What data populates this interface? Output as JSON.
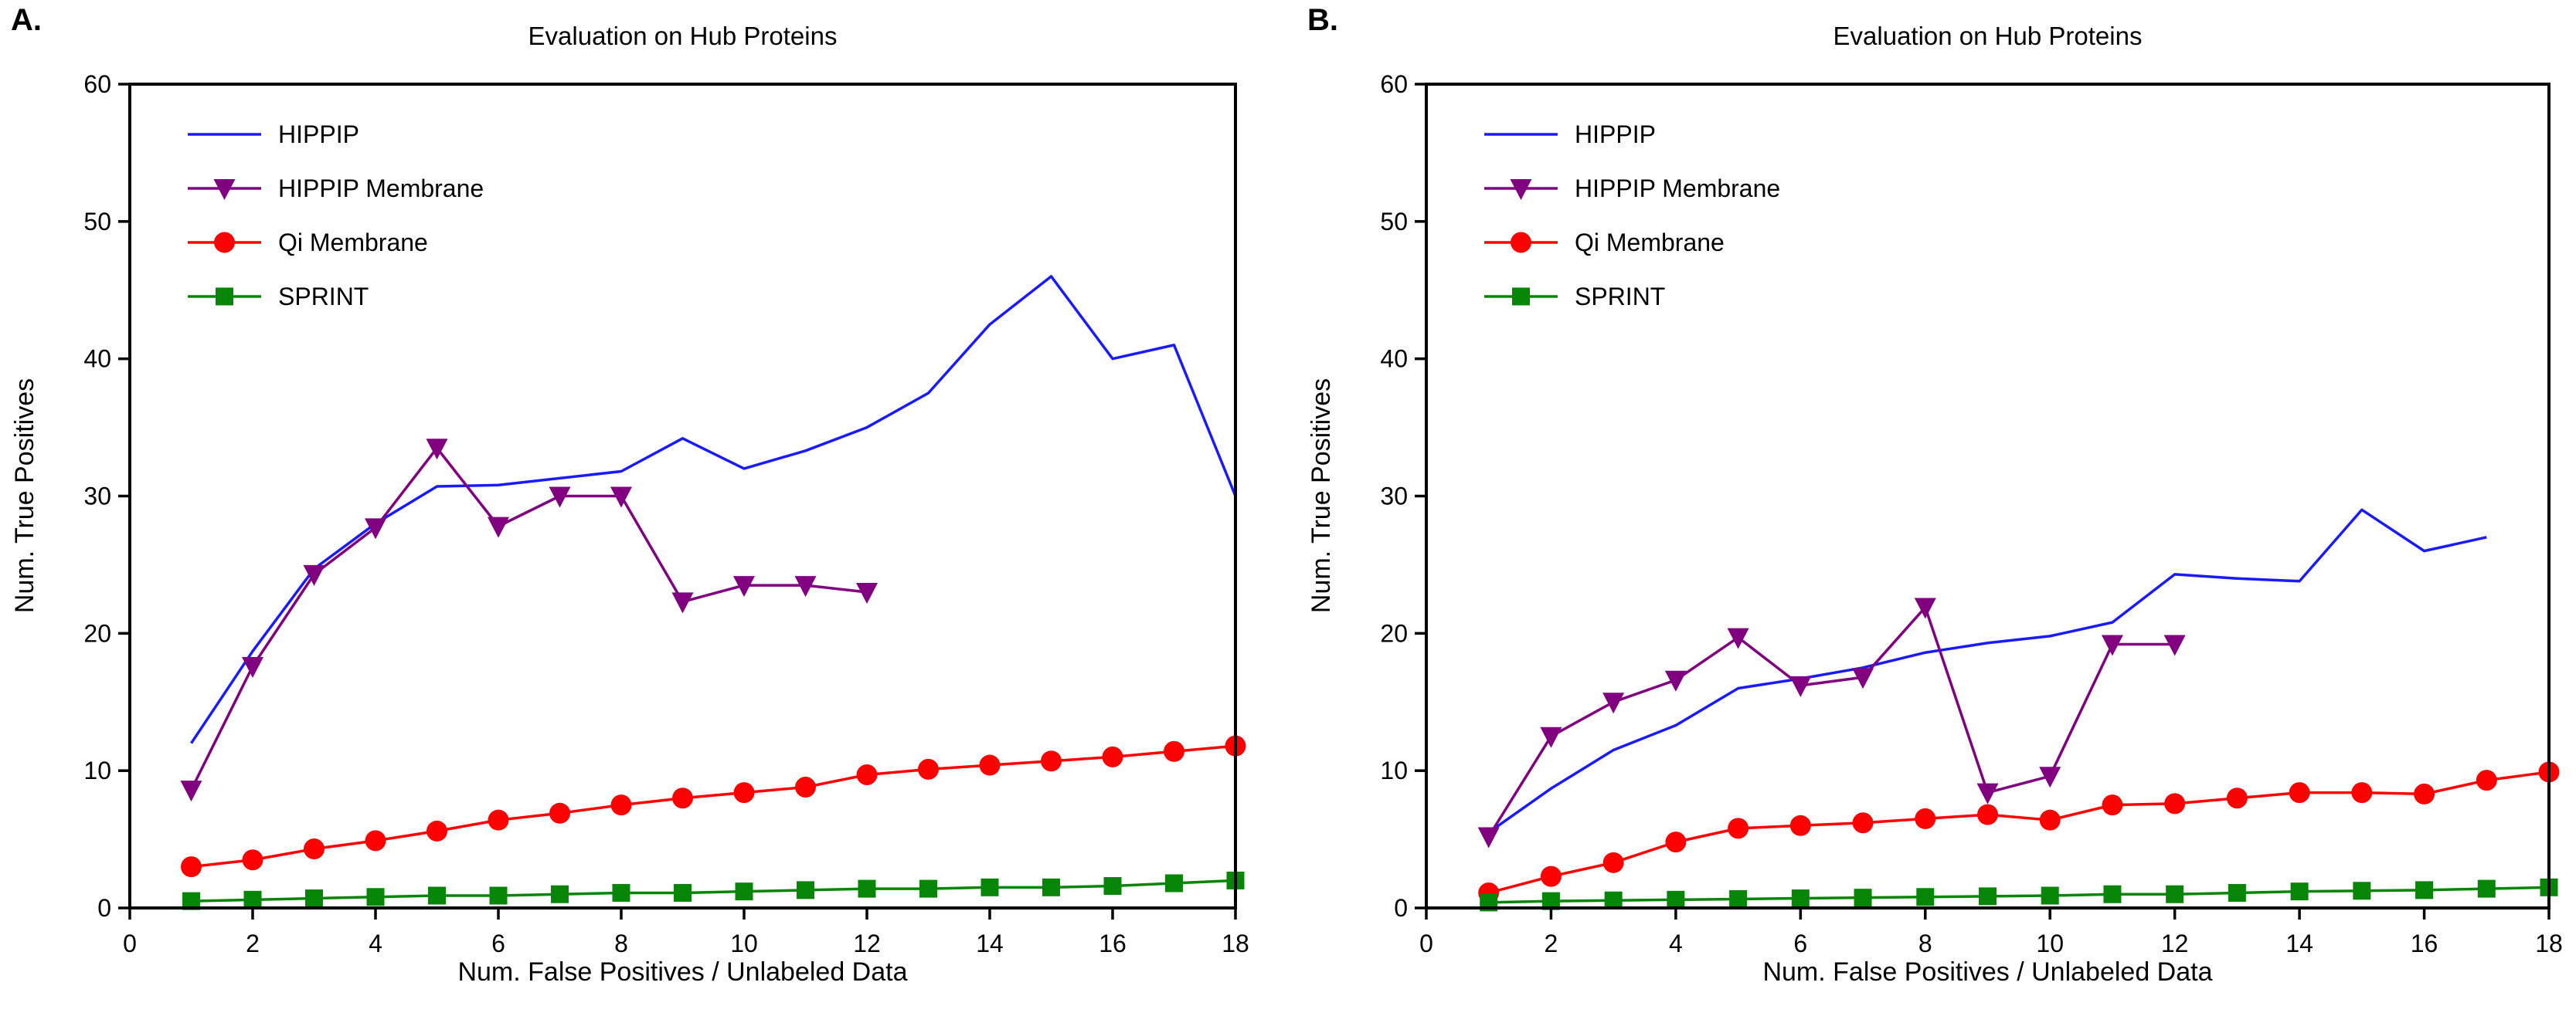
{
  "figure": {
    "background": "#ffffff",
    "text_color": "#000000"
  },
  "chart_data": [
    {
      "type": "line",
      "panel_label": "A.",
      "title": "Evaluation on Hub Proteins",
      "xlabel": "Num. False Positives / Unlabeled Data",
      "ylabel": "Num. True Positives",
      "xlim": [
        0,
        18
      ],
      "ylim": [
        0,
        60
      ],
      "xticks": [
        0,
        2,
        4,
        6,
        8,
        10,
        12,
        14,
        16,
        18
      ],
      "yticks": [
        0,
        10,
        20,
        30,
        40,
        50,
        60
      ],
      "grid": false,
      "legend_position": "upper left",
      "axis_color": "#000000",
      "series": [
        {
          "name": "HIPPIP",
          "color": "#1a1aff",
          "marker": "none",
          "x": [
            1,
            2,
            3,
            4,
            5,
            6,
            7,
            8,
            9,
            10,
            11,
            12,
            13,
            14,
            15,
            16,
            17,
            18
          ],
          "y": [
            12,
            18.7,
            24.7,
            28,
            30.7,
            30.8,
            31.3,
            31.8,
            34.2,
            32,
            33.3,
            35,
            37.5,
            42.5,
            46,
            40,
            41,
            30
          ]
        },
        {
          "name": "HIPPIP Membrane",
          "color": "#800080",
          "marker": "triangle-down",
          "x": [
            1,
            2,
            3,
            4,
            5,
            6,
            7,
            8,
            9,
            10,
            11,
            12
          ],
          "y": [
            8.6,
            17.6,
            24.3,
            27.7,
            33.5,
            27.8,
            30,
            30,
            22.3,
            23.5,
            23.5,
            23
          ]
        },
        {
          "name": "Qi Membrane",
          "color": "#ff0000",
          "marker": "circle",
          "x": [
            1,
            2,
            3,
            4,
            5,
            6,
            7,
            8,
            9,
            10,
            11,
            12,
            13,
            14,
            15,
            16,
            17,
            18
          ],
          "y": [
            3,
            3.5,
            4.3,
            4.9,
            5.6,
            6.4,
            6.9,
            7.5,
            8,
            8.4,
            8.8,
            9.7,
            10.1,
            10.4,
            10.7,
            11,
            11.4,
            11.8
          ]
        },
        {
          "name": "SPRINT",
          "color": "#078507",
          "marker": "square",
          "x": [
            1,
            2,
            3,
            4,
            5,
            6,
            7,
            8,
            9,
            10,
            11,
            12,
            13,
            14,
            15,
            16,
            17,
            18
          ],
          "y": [
            0.5,
            0.6,
            0.7,
            0.8,
            0.9,
            0.9,
            1,
            1.1,
            1.1,
            1.2,
            1.3,
            1.4,
            1.4,
            1.5,
            1.5,
            1.6,
            1.8,
            2
          ]
        }
      ]
    },
    {
      "type": "line",
      "panel_label": "B.",
      "title": "Evaluation on Hub Proteins",
      "xlabel": "Num. False Positives / Unlabeled Data",
      "ylabel": "Num. True Positives",
      "xlim": [
        0,
        18
      ],
      "ylim": [
        0,
        60
      ],
      "xticks": [
        0,
        2,
        4,
        6,
        8,
        10,
        12,
        14,
        16,
        18
      ],
      "yticks": [
        0,
        10,
        20,
        30,
        40,
        50,
        60
      ],
      "grid": false,
      "legend_position": "upper left",
      "axis_color": "#000000",
      "series": [
        {
          "name": "HIPPIP",
          "color": "#1a1aff",
          "marker": "none",
          "x": [
            1,
            2,
            3,
            4,
            5,
            6,
            7,
            8,
            9,
            10,
            11,
            12,
            13,
            14,
            15,
            16,
            17
          ],
          "y": [
            5.5,
            8.7,
            11.5,
            13.3,
            16,
            16.7,
            17.5,
            18.6,
            19.3,
            19.8,
            20.8,
            24.3,
            24,
            23.8,
            29,
            26,
            27
          ]
        },
        {
          "name": "HIPPIP Membrane",
          "color": "#800080",
          "marker": "triangle-down",
          "x": [
            1,
            2,
            3,
            4,
            5,
            6,
            7,
            8,
            9,
            10,
            11,
            12
          ],
          "y": [
            5.2,
            12.5,
            15,
            16.6,
            19.7,
            16.2,
            16.8,
            21.9,
            8.4,
            9.6,
            19.2,
            19.2
          ]
        },
        {
          "name": "Qi Membrane",
          "color": "#ff0000",
          "marker": "circle",
          "x": [
            1,
            2,
            3,
            4,
            5,
            6,
            7,
            8,
            9,
            10,
            11,
            12,
            13,
            14,
            15,
            16,
            17,
            18
          ],
          "y": [
            1.1,
            2.3,
            3.3,
            4.8,
            5.8,
            6,
            6.2,
            6.5,
            6.8,
            6.4,
            7.5,
            7.6,
            8,
            8.4,
            8.4,
            8.3,
            9.3,
            9.9
          ]
        },
        {
          "name": "SPRINT",
          "color": "#078507",
          "marker": "square",
          "x": [
            1,
            2,
            3,
            4,
            5,
            6,
            7,
            8,
            9,
            10,
            11,
            12,
            13,
            14,
            15,
            16,
            17,
            18
          ],
          "y": [
            0.4,
            0.5,
            0.55,
            0.6,
            0.65,
            0.7,
            0.75,
            0.8,
            0.85,
            0.9,
            1,
            1,
            1.1,
            1.2,
            1.25,
            1.3,
            1.4,
            1.5
          ]
        }
      ]
    }
  ]
}
